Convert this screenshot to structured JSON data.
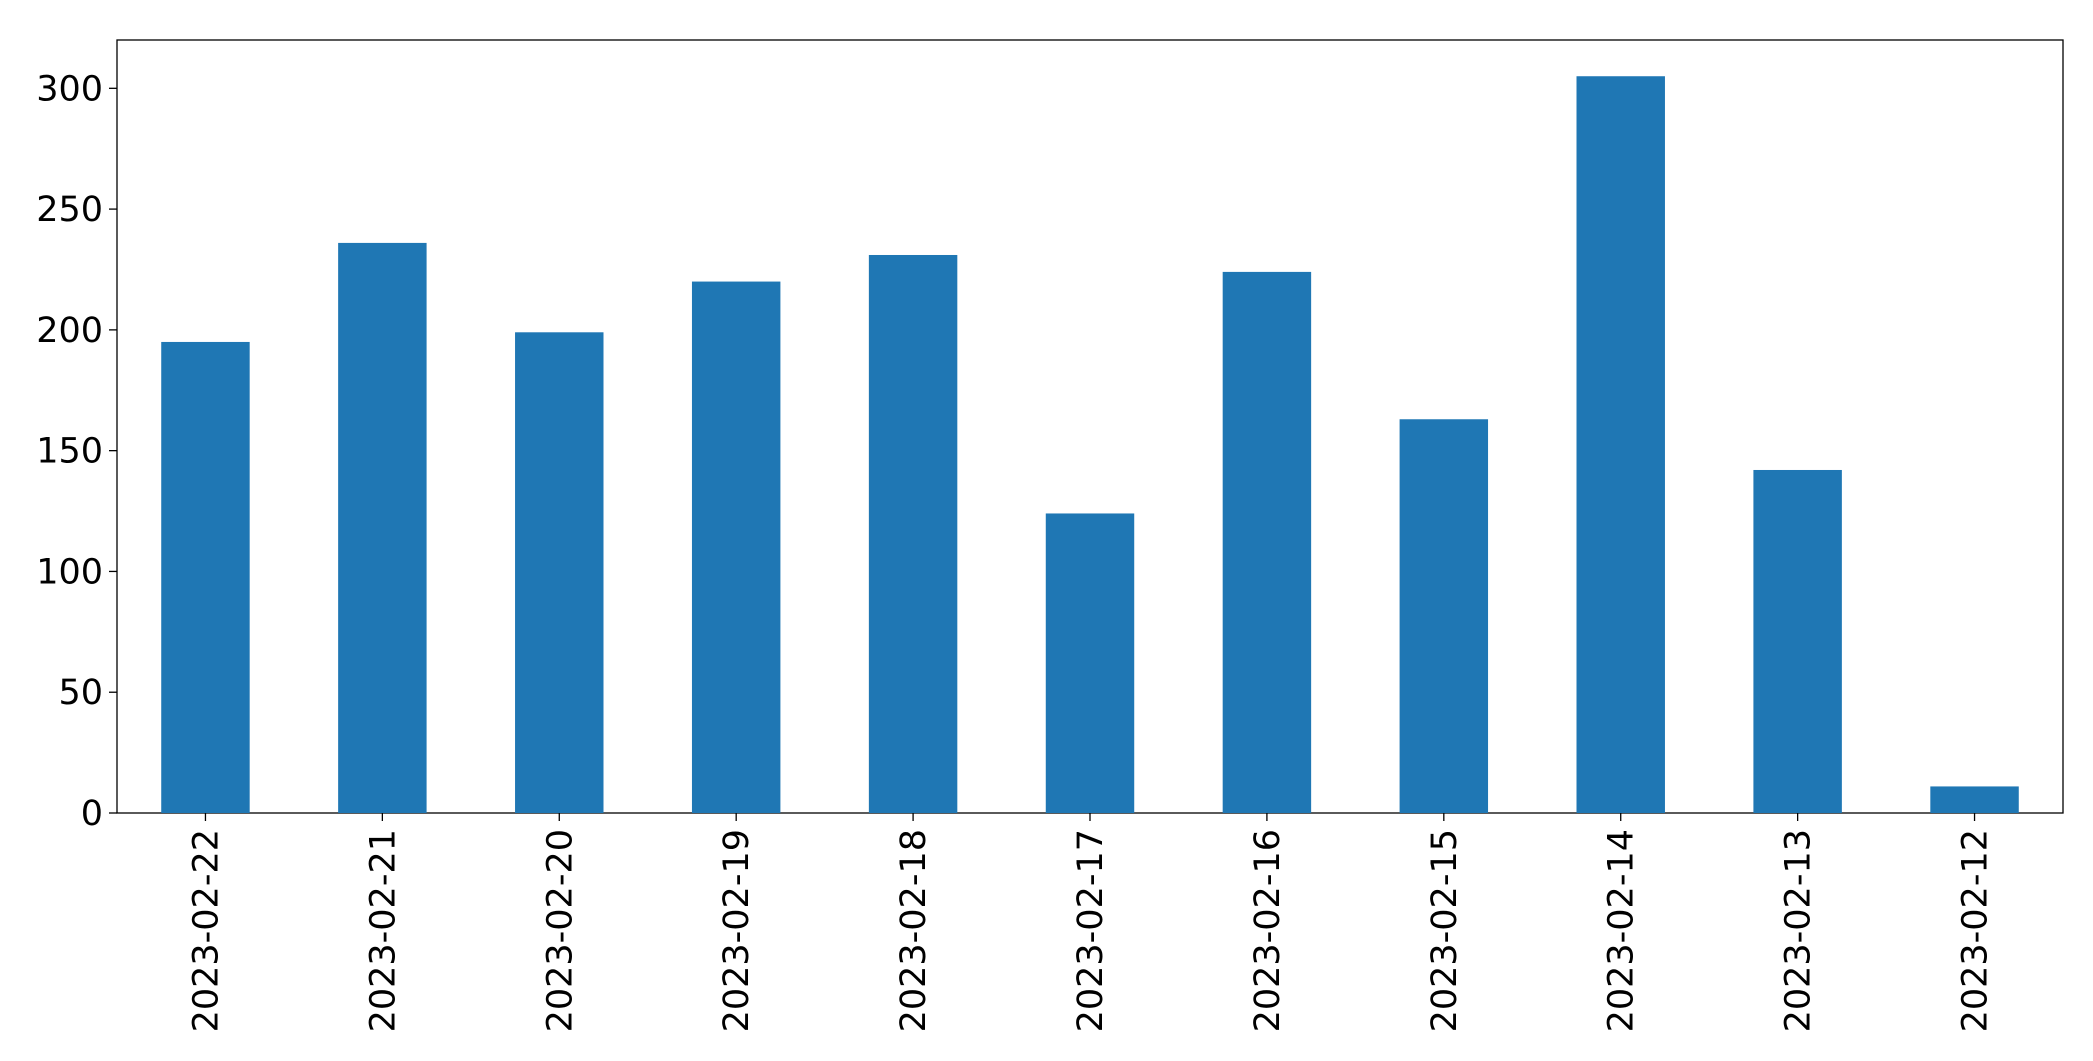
{
  "chart_data": {
    "type": "bar",
    "categories": [
      "2023-02-22",
      "2023-02-21",
      "2023-02-20",
      "2023-02-19",
      "2023-02-18",
      "2023-02-17",
      "2023-02-16",
      "2023-02-15",
      "2023-02-14",
      "2023-02-13",
      "2023-02-12"
    ],
    "values": [
      195,
      236,
      199,
      220,
      231,
      124,
      224,
      163,
      305,
      142,
      11
    ],
    "color": "#1f77b4",
    "ylim": [
      0,
      320
    ],
    "yticks": [
      0,
      50,
      100,
      150,
      200,
      250,
      300
    ],
    "grid": false
  }
}
